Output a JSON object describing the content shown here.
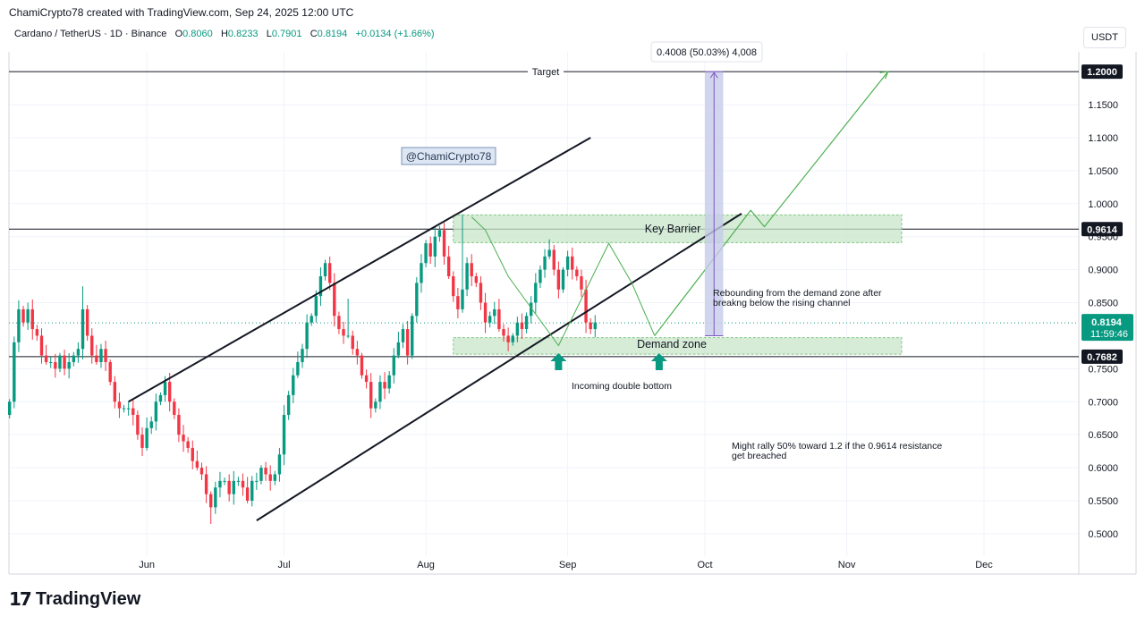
{
  "header": {
    "attribution": "ChamiCrypto78 created with TradingView.com, Sep 24, 2025 12:00 UTC",
    "symbol_title": "Cardano / TetherUS · 1D · Binance",
    "o_label": "O",
    "o_value": "0.8060",
    "h_label": "H",
    "h_value": "0.8233",
    "l_label": "L",
    "l_value": "0.7901",
    "c_label": "C",
    "c_value": "0.8194",
    "change": "+0.0134 (+1.66%)",
    "currency": "USDT"
  },
  "branding": {
    "logo_mark": "17",
    "logo_text": "TradingView"
  },
  "colors": {
    "up": "#089981",
    "down": "#f23645",
    "zone_fill": "#c8e6c9",
    "zone_stroke": "#81c784",
    "projection": "#4caf50",
    "measure": "#7e57c2",
    "measure_fill": "#c5cae9"
  },
  "chart_data": {
    "type": "candlestick",
    "pair": "ADA/USDT",
    "interval": "1D",
    "ylim": [
      0.48,
      1.25
    ],
    "x_ticks": [
      {
        "label": "Jun",
        "day": 30
      },
      {
        "label": "Jul",
        "day": 60
      },
      {
        "label": "Aug",
        "day": 91
      },
      {
        "label": "Sep",
        "day": 122
      },
      {
        "label": "Oct",
        "day": 152
      },
      {
        "label": "Nov",
        "day": 183
      },
      {
        "label": "Dec",
        "day": 213
      }
    ],
    "y_ticks": [
      {
        "label": "1.1500",
        "value": 1.15
      },
      {
        "label": "1.1000",
        "value": 1.1
      },
      {
        "label": "1.0500",
        "value": 1.05
      },
      {
        "label": "1.0000",
        "value": 1.0
      },
      {
        "label": "0.9500",
        "value": 0.95
      },
      {
        "label": "0.9000",
        "value": 0.9
      },
      {
        "label": "0.8500",
        "value": 0.85
      },
      {
        "label": "0.7500",
        "value": 0.75
      },
      {
        "label": "0.7000",
        "value": 0.7
      },
      {
        "label": "0.6500",
        "value": 0.65
      },
      {
        "label": "0.6000",
        "value": 0.6
      },
      {
        "label": "0.5500",
        "value": 0.55
      },
      {
        "label": "0.5000",
        "value": 0.5
      }
    ],
    "price_labels": [
      {
        "label": "1.2000",
        "value": 1.2,
        "style": "dark"
      },
      {
        "label": "0.9614",
        "value": 0.9614,
        "style": "dark"
      },
      {
        "label": "0.7682",
        "value": 0.7682,
        "style": "dark"
      }
    ],
    "last_price": {
      "label": "0.8194",
      "countdown": "11:59:46",
      "value": 0.8194
    },
    "closes": [
      0.7,
      0.79,
      0.84,
      0.82,
      0.84,
      0.81,
      0.8,
      0.77,
      0.76,
      0.76,
      0.75,
      0.77,
      0.75,
      0.76,
      0.77,
      0.78,
      0.84,
      0.8,
      0.77,
      0.76,
      0.78,
      0.76,
      0.73,
      0.7,
      0.69,
      0.69,
      0.69,
      0.68,
      0.65,
      0.63,
      0.66,
      0.67,
      0.7,
      0.71,
      0.73,
      0.7,
      0.68,
      0.65,
      0.64,
      0.63,
      0.61,
      0.6,
      0.59,
      0.56,
      0.54,
      0.57,
      0.58,
      0.58,
      0.56,
      0.58,
      0.58,
      0.57,
      0.55,
      0.58,
      0.58,
      0.6,
      0.59,
      0.58,
      0.59,
      0.62,
      0.68,
      0.71,
      0.74,
      0.76,
      0.78,
      0.82,
      0.83,
      0.86,
      0.89,
      0.91,
      0.88,
      0.83,
      0.81,
      0.8,
      0.8,
      0.78,
      0.77,
      0.74,
      0.73,
      0.69,
      0.7,
      0.73,
      0.72,
      0.74,
      0.77,
      0.79,
      0.81,
      0.77,
      0.83,
      0.88,
      0.91,
      0.94,
      0.92,
      0.95,
      0.96,
      0.92,
      0.89,
      0.86,
      0.84,
      0.87,
      0.91,
      0.89,
      0.88,
      0.85,
      0.82,
      0.83,
      0.84,
      0.81,
      0.8,
      0.79,
      0.8,
      0.82,
      0.81,
      0.83,
      0.85,
      0.88,
      0.9,
      0.92,
      0.93,
      0.9,
      0.87,
      0.9,
      0.92,
      0.9,
      0.89,
      0.87,
      0.82,
      0.81,
      0.82
    ],
    "channel": {
      "upper": {
        "start": {
          "day": 26,
          "value": 0.7
        },
        "end": {
          "day": 127,
          "value": 1.1
        }
      },
      "lower": {
        "start": {
          "day": 54,
          "value": 0.52
        },
        "end": {
          "day": 160,
          "value": 0.985
        }
      }
    },
    "levels": [
      {
        "name": "Target",
        "value": 1.2
      },
      {
        "name": "resistance",
        "value": 0.9614
      },
      {
        "name": "support",
        "value": 0.7682
      }
    ],
    "zones": [
      {
        "name": "Key Barrier",
        "from": {
          "day": 97,
          "value": 0.983
        },
        "to": {
          "day": 195,
          "value": 0.941
        }
      },
      {
        "name": "Demand zone",
        "from": {
          "day": 97,
          "value": 0.797
        },
        "to": {
          "day": 195,
          "value": 0.772
        }
      }
    ],
    "measure": {
      "day_from": 152,
      "day_to": 156,
      "value_from": 0.8,
      "value_to": 1.2,
      "label": "0.4008 (50.03%) 4,008"
    },
    "projection_path": [
      {
        "day": 141,
        "value": 0.8
      },
      {
        "day": 162,
        "value": 0.99
      },
      {
        "day": 165,
        "value": 0.965
      },
      {
        "day": 192,
        "value": 1.2
      }
    ],
    "swing_path": [
      {
        "day": 101,
        "value": 0.98
      },
      {
        "day": 104,
        "value": 0.96
      },
      {
        "day": 109,
        "value": 0.89
      },
      {
        "day": 120,
        "value": 0.785
      },
      {
        "day": 131,
        "value": 0.94
      },
      {
        "day": 136,
        "value": 0.88
      },
      {
        "day": 141,
        "value": 0.8
      }
    ],
    "markers": [
      {
        "name": "double-bottom-arrow-1",
        "day": 120,
        "value": 0.77
      },
      {
        "name": "double-bottom-arrow-2",
        "day": 142,
        "value": 0.77
      }
    ],
    "annotations": {
      "target": "Target",
      "watermark": "@ChamiCrypto78",
      "key_barrier": "Key Barrier",
      "demand_zone": "Demand zone",
      "double_bottom": "Incoming double bottom",
      "rebound_line1": "Rebounding from the demand zone after",
      "rebound_line2": "breakng below the rising channel",
      "rally_line1": "Might rally 50% toward 1.2 if the 0.9614 resistance",
      "rally_line2": "get breached"
    }
  }
}
